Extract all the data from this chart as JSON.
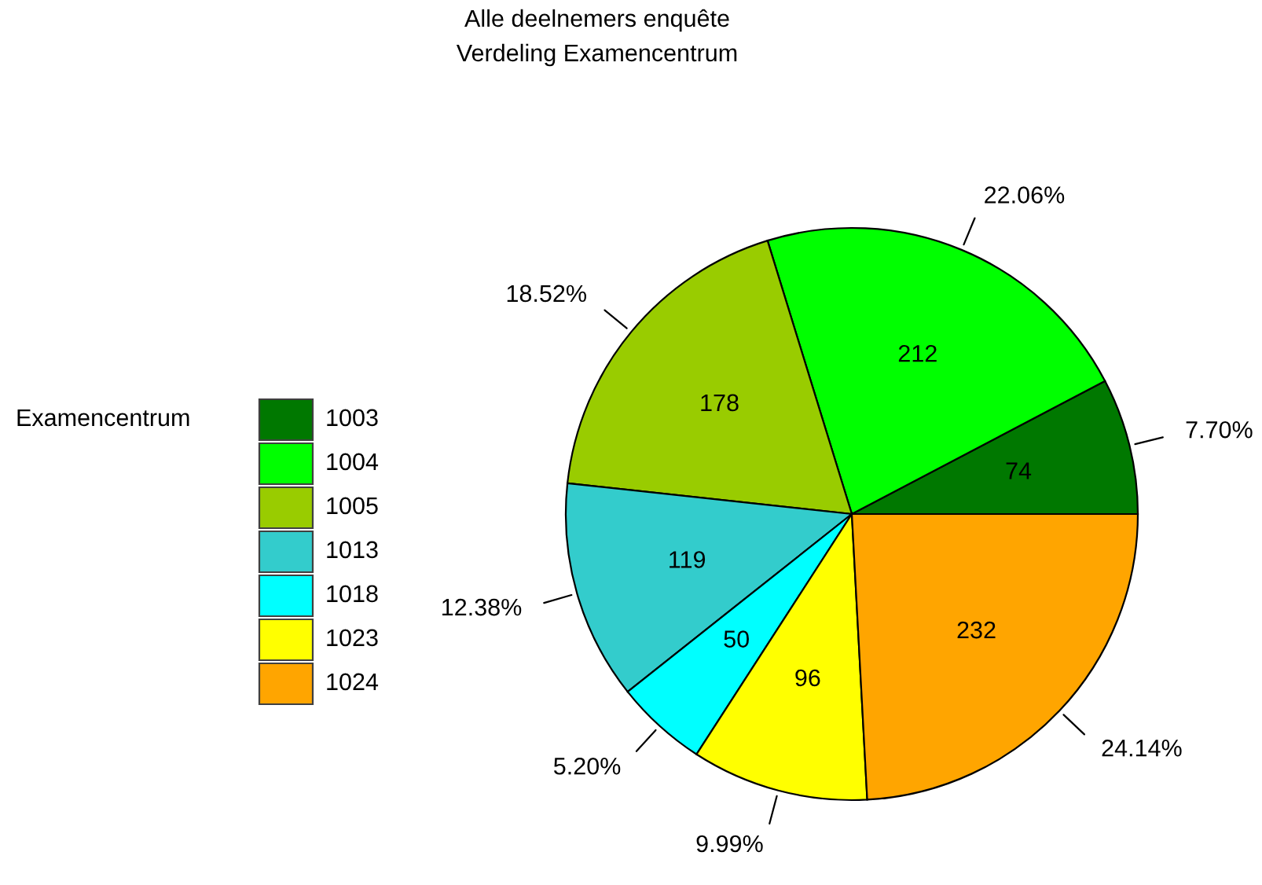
{
  "chart_data": {
    "type": "pie",
    "title": "Alle deelnemers enquête",
    "subtitle": "Verdeling Examencentrum",
    "legend_title": "Examencentrum",
    "categories": [
      "1003",
      "1004",
      "1005",
      "1013",
      "1018",
      "1023",
      "1024"
    ],
    "values": [
      74,
      212,
      178,
      119,
      50,
      96,
      232
    ],
    "colors": [
      "#007800",
      "#00ff00",
      "#99cc00",
      "#33cccc",
      "#00ffff",
      "#ffff00",
      "#ffa500"
    ],
    "data_labels": true,
    "annotations": [
      "7.70%",
      "22.06%",
      "18.52%",
      "12.38%",
      "5.20%",
      "9.99%",
      "24.14%"
    ],
    "legend": "left"
  }
}
